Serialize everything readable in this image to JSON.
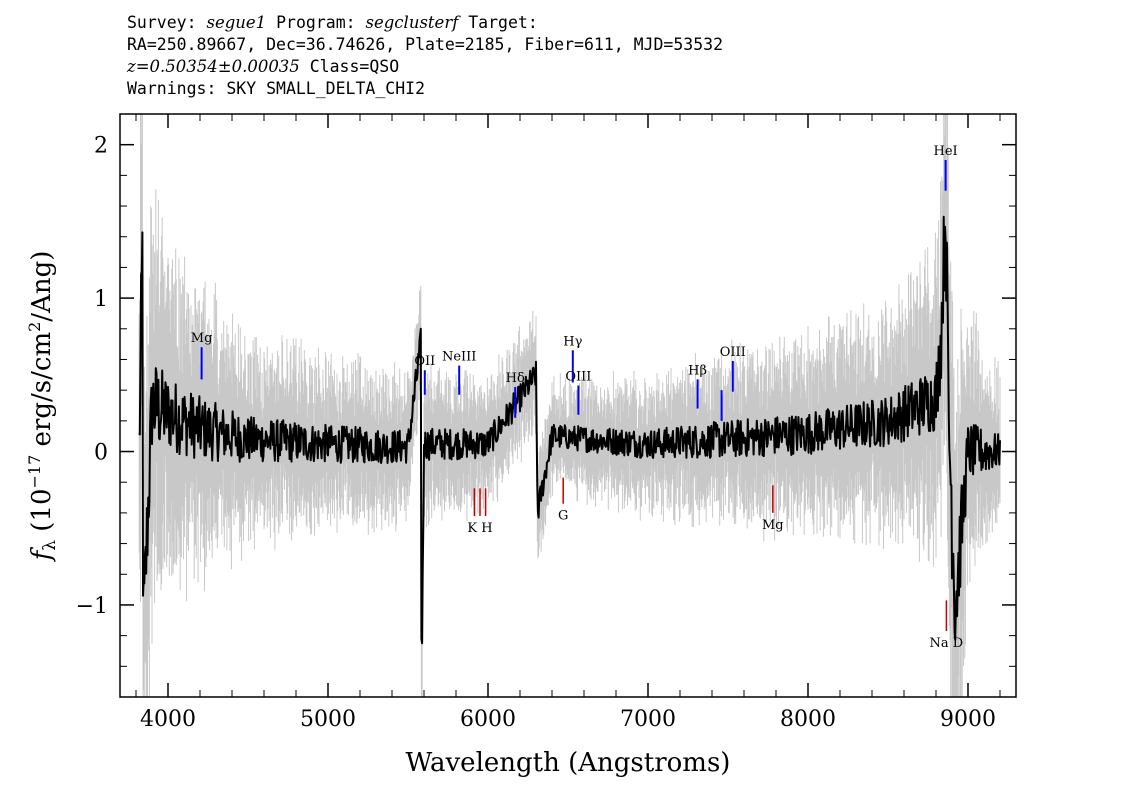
{
  "header": {
    "line1": {
      "survey_label": "Survey: ",
      "survey": "segue1",
      "program_label": " Program: ",
      "program": "segclusterf",
      "target_label": " Target:"
    },
    "line2": "RA=250.89667, Dec=36.74626, Plate=2185, Fiber=611, MJD=53532",
    "line3": {
      "redshift": "z=0.50354±0.00035",
      "class": " Class=QSO"
    },
    "line4": "Warnings: SKY SMALL_DELTA_CHI2"
  },
  "colors": {
    "flux": "#000000",
    "error": "#c8c8c8",
    "emission": "#0000ff",
    "absorption": "#cc0000"
  },
  "chart_data": {
    "type": "line",
    "xlabel": "Wavelength (Angstroms)",
    "ylabel": "fλ (10⁻¹⁷ erg/s/cm²/Ang)",
    "ylabel_parts": {
      "f": "f",
      "sub": "λ",
      "pre": " (10",
      "exp1": "−17",
      "mid": " erg/s/cm",
      "exp2": "2",
      "post": "/Ang)"
    },
    "xlim": [
      3700,
      9300
    ],
    "ylim": [
      -1.6,
      2.2
    ],
    "xticks": [
      4000,
      5000,
      6000,
      7000,
      8000,
      9000
    ],
    "xtick_labels": [
      "4000",
      "5000",
      "6000",
      "7000",
      "8000",
      "9000"
    ],
    "yticks": [
      -1,
      0,
      1,
      2
    ],
    "ytick_labels": [
      "−1",
      "0",
      "1",
      "2"
    ],
    "flux_anchor_points": [
      [
        3820,
        0.0
      ],
      [
        3840,
        1.3
      ],
      [
        3845,
        -1.2
      ],
      [
        3900,
        0.3
      ],
      [
        4000,
        0.25
      ],
      [
        4100,
        0.2
      ],
      [
        4200,
        0.15
      ],
      [
        4500,
        0.08
      ],
      [
        5000,
        0.05
      ],
      [
        5500,
        0.03
      ],
      [
        5580,
        0.7
      ],
      [
        5585,
        -1.6
      ],
      [
        5600,
        0.05
      ],
      [
        6000,
        0.05
      ],
      [
        6300,
        0.5
      ],
      [
        6310,
        -0.4
      ],
      [
        6400,
        0.1
      ],
      [
        7000,
        0.05
      ],
      [
        7500,
        0.08
      ],
      [
        8000,
        0.12
      ],
      [
        8500,
        0.2
      ],
      [
        8800,
        0.35
      ],
      [
        8830,
        0.7
      ],
      [
        8860,
        1.6
      ],
      [
        8880,
        0.2
      ],
      [
        8920,
        -1.0
      ],
      [
        9000,
        0.0
      ],
      [
        9200,
        0.0
      ]
    ],
    "error_envelope": [
      [
        3820,
        1.4
      ],
      [
        4000,
        0.9
      ],
      [
        4500,
        0.55
      ],
      [
        5000,
        0.45
      ],
      [
        5500,
        0.4
      ],
      [
        6000,
        0.35
      ],
      [
        6500,
        0.3
      ],
      [
        7000,
        0.35
      ],
      [
        7500,
        0.45
      ],
      [
        8000,
        0.5
      ],
      [
        8500,
        0.6
      ],
      [
        8800,
        0.8
      ],
      [
        8900,
        1.6
      ],
      [
        9000,
        0.7
      ],
      [
        9200,
        0.4
      ]
    ],
    "emission_lines": [
      {
        "label": "Mg",
        "x": 4210,
        "y0": 0.47,
        "y1": 0.68
      },
      {
        "label": "OII",
        "x": 5605,
        "y0": 0.37,
        "y1": 0.53
      },
      {
        "label": "NeIII",
        "x": 5820,
        "y0": 0.37,
        "y1": 0.56
      },
      {
        "label": "Hδ",
        "x": 6170,
        "y0": 0.22,
        "y1": 0.42
      },
      {
        "label": "Hγ",
        "x": 6530,
        "y0": 0.45,
        "y1": 0.66
      },
      {
        "label": "OIII",
        "x": 6565,
        "y0": 0.24,
        "y1": 0.43
      },
      {
        "label": "Hβ",
        "x": 7310,
        "y0": 0.28,
        "y1": 0.47
      },
      {
        "label": "",
        "x": 7460,
        "y0": 0.2,
        "y1": 0.4
      },
      {
        "label": "OIII",
        "x": 7530,
        "y0": 0.39,
        "y1": 0.59
      },
      {
        "label": "HeI",
        "x": 8860,
        "y0": 1.7,
        "y1": 1.9
      }
    ],
    "absorption_lines": [
      {
        "label": "K H",
        "x": 5915,
        "y0": -0.24,
        "y1": -0.42,
        "extra_x": [
          5950,
          5985
        ]
      },
      {
        "label": "G",
        "x": 6470,
        "y0": -0.17,
        "y1": -0.34
      },
      {
        "label": "Mg",
        "x": 7780,
        "y0": -0.22,
        "y1": -0.4
      },
      {
        "label": "Na D",
        "x": 8865,
        "y0": -0.97,
        "y1": -1.17
      }
    ]
  }
}
